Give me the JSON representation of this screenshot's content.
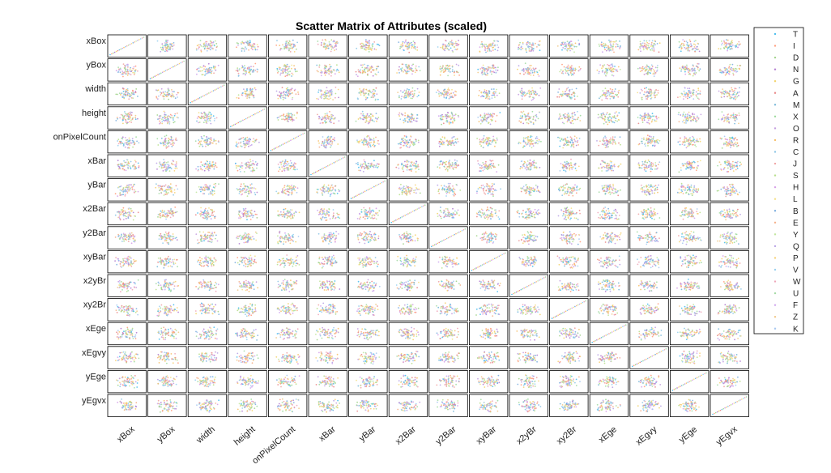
{
  "chart_data": {
    "type": "scatter",
    "subtype": "scatter-matrix",
    "title": "Scatter Matrix of Attributes (scaled)",
    "attributes": [
      "xBox",
      "yBox",
      "width",
      "height",
      "onPixelCount",
      "xBar",
      "yBar",
      "x2Bar",
      "y2Bar",
      "xyBar",
      "x2yBr",
      "xy2Br",
      "xEge",
      "xEgvy",
      "yEge",
      "yEgvx"
    ],
    "diagonal": "identity line (scaled values)",
    "legend": {
      "placement": "top-right",
      "entries": [
        "T",
        "I",
        "D",
        "N",
        "G",
        "A",
        "M",
        "X",
        "O",
        "R",
        "C",
        "J",
        "S",
        "H",
        "L",
        "B",
        "E",
        "Y",
        "Q",
        "P",
        "V",
        "W",
        "U",
        "F",
        "Z",
        "K"
      ]
    },
    "series_colors": [
      "#4dbeee",
      "#ff9f7f",
      "#a2d48b",
      "#b47fd1",
      "#f2d36b",
      "#e98a8a",
      "#77b8d9",
      "#9edb9e",
      "#c59ee0",
      "#f7c06b",
      "#8fc7e6",
      "#f0a3a3",
      "#b8e08d",
      "#d6a0e8",
      "#f4e08a",
      "#7fb0e0",
      "#f5b08a",
      "#c2e6a0",
      "#b9a3e6",
      "#f7d27a",
      "#9ad0f0",
      "#eea7b9",
      "#a6dba6",
      "#cfa6ee",
      "#f0c98a",
      "#a8c8f0"
    ],
    "grid": false
  }
}
